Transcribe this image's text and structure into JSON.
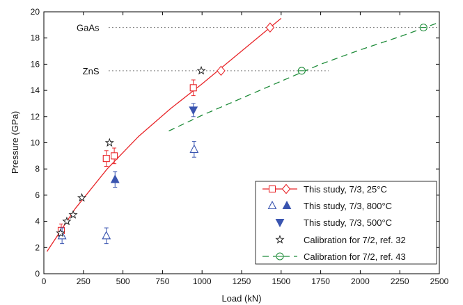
{
  "chart_data": {
    "type": "scatter",
    "xlabel": "Load (kN)",
    "ylabel": "Pressure (GPa)",
    "xlim": [
      0,
      2500
    ],
    "ylim": [
      0,
      20
    ],
    "xticks": [
      0,
      250,
      500,
      750,
      1000,
      1250,
      1500,
      1750,
      2000,
      2250,
      2500
    ],
    "yticks": [
      0,
      2,
      4,
      6,
      8,
      10,
      12,
      14,
      16,
      18,
      20
    ],
    "grid": false,
    "legend_position": "bottom-right",
    "reference_lines": [
      {
        "label": "GaAs",
        "y": 18.8,
        "x_label": 350,
        "x_start": 410,
        "x_end": 2500
      },
      {
        "label": "ZnS",
        "y": 15.5,
        "x_label": 350,
        "x_start": 410,
        "x_end": 1800
      }
    ],
    "fits": [
      {
        "series": "This study, 7/3, 25°C",
        "color": "#e8262a",
        "dash": "solid",
        "x_start": 20,
        "x_end": 1500,
        "points": [
          [
            20,
            1.7
          ],
          [
            200,
            5.0
          ],
          [
            400,
            8.0
          ],
          [
            600,
            10.5
          ],
          [
            800,
            12.6
          ],
          [
            1000,
            14.5
          ],
          [
            1200,
            16.5
          ],
          [
            1400,
            18.5
          ],
          [
            1500,
            19.5
          ]
        ]
      },
      {
        "series": "Calibration for 7/2, ref. 43",
        "color": "#1f8c3a",
        "dash": "long",
        "x_start": 790,
        "x_end": 2500,
        "points": [
          [
            790,
            10.9
          ],
          [
            1000,
            12.1
          ],
          [
            1250,
            13.4
          ],
          [
            1500,
            14.7
          ],
          [
            1750,
            16.0
          ],
          [
            2000,
            17.1
          ],
          [
            2250,
            18.1
          ],
          [
            2500,
            19.2
          ]
        ]
      }
    ],
    "series": [
      {
        "name": "This study, 7/3, 25°C",
        "marker": "square",
        "color": "#e8262a",
        "x": [
          110,
          395,
          445,
          945
        ],
        "y": [
          3.3,
          8.8,
          9.0,
          14.2
        ],
        "yerr": [
          0.5,
          0.6,
          0.6,
          0.6
        ]
      },
      {
        "name": "This study, 7/3, 25°C (reference points)",
        "marker": "diamond",
        "color": "#e8262a",
        "x": [
          1430,
          1120
        ],
        "y": [
          18.8,
          15.5
        ]
      },
      {
        "name": "This study, 7/3, 800°C",
        "marker": "triangle-up-open",
        "color": "#3a55b0",
        "x": [
          115,
          395,
          950
        ],
        "y": [
          2.9,
          2.9,
          9.5
        ],
        "yerr": [
          0.6,
          0.6,
          0.6
        ]
      },
      {
        "name": "This study, 7/3, 800°C (filled)",
        "marker": "triangle-up-filled",
        "color": "#3a55b0",
        "x": [
          450
        ],
        "y": [
          7.2
        ],
        "yerr": [
          0.6
        ]
      },
      {
        "name": "This study, 7/3, 500°C",
        "marker": "triangle-down-filled",
        "color": "#3a55b0",
        "x": [
          945
        ],
        "y": [
          12.5
        ],
        "yerr": [
          0.5
        ]
      },
      {
        "name": "Calibration for 7/2, ref. 32",
        "marker": "star",
        "color": "#222222",
        "x": [
          105,
          145,
          185,
          240,
          415,
          995
        ],
        "y": [
          3.1,
          4.0,
          4.5,
          5.8,
          10.0,
          15.5
        ]
      },
      {
        "name": "Calibration for 7/2, ref. 43",
        "marker": "circle-line",
        "color": "#1f8c3a",
        "x": [
          1630,
          2400
        ],
        "y": [
          15.5,
          18.8
        ]
      }
    ],
    "legend": [
      {
        "label": "This study, 7/3, 25°C",
        "symbols": [
          "line-square",
          "line-diamond"
        ],
        "color": "#e8262a"
      },
      {
        "label": "This study, 7/3, 800°C",
        "symbols": [
          "triangle-up-open",
          "triangle-up-filled"
        ],
        "color": "#3a55b0"
      },
      {
        "label": "This study, 7/3, 500°C",
        "symbols": [
          "triangle-down-filled"
        ],
        "color": "#3a55b0"
      },
      {
        "label": "Calibration for 7/2, ref. 32",
        "symbols": [
          "star"
        ],
        "color": "#222222"
      },
      {
        "label": "Calibration for 7/2, ref. 43",
        "symbols": [
          "dash-circle"
        ],
        "color": "#1f8c3a"
      }
    ]
  }
}
